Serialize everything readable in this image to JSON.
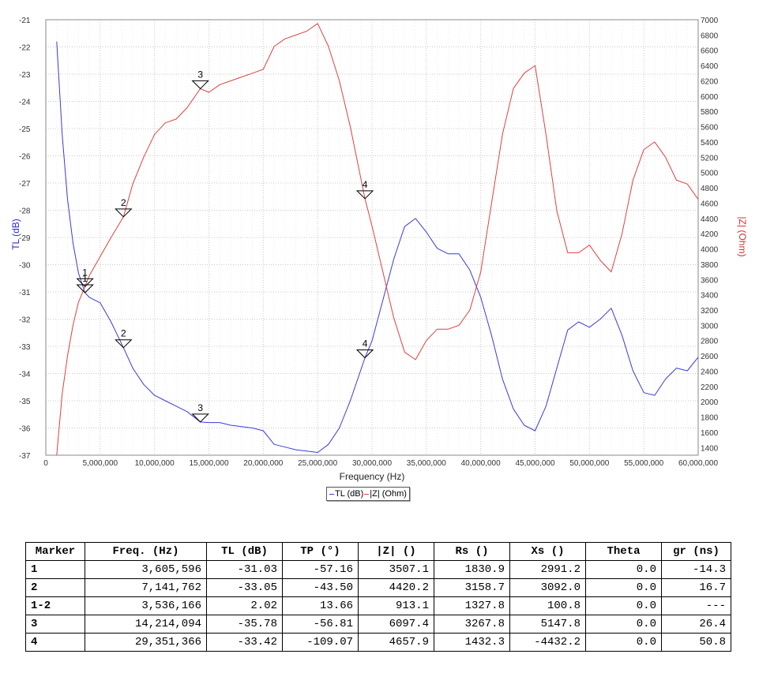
{
  "chart_data": {
    "type": "line",
    "xlabel": "Frequency (Hz)",
    "ylabel_left": "TL (dB)",
    "ylabel_right": "|Z| (Ohm)",
    "xlim": [
      0,
      60000000
    ],
    "ylim_left": [
      -37,
      -21
    ],
    "ylim_right": [
      1300,
      7000
    ],
    "x_ticks": [
      "0",
      "5,000,000",
      "10,000,000",
      "15,000,000",
      "20,000,000",
      "25,000,000",
      "30,000,000",
      "35,000,000",
      "40,000,000",
      "45,000,000",
      "50,000,000",
      "55,000,000",
      "60,000,000"
    ],
    "y_left_ticks": [
      "-21",
      "-22",
      "-23",
      "-24",
      "-25",
      "-26",
      "-27",
      "-28",
      "-29",
      "-30",
      "-31",
      "-32",
      "-33",
      "-34",
      "-35",
      "-36",
      "-37"
    ],
    "y_right_ticks": [
      "7000",
      "6800",
      "6600",
      "6400",
      "6200",
      "6000",
      "5800",
      "5600",
      "5400",
      "5200",
      "5000",
      "4800",
      "4600",
      "4400",
      "4200",
      "4000",
      "3800",
      "3600",
      "3400",
      "3200",
      "3000",
      "2800",
      "2600",
      "2400",
      "2200",
      "2000",
      "1800",
      "1600",
      "1400"
    ],
    "grid": true,
    "legend": {
      "position": "bottom-center",
      "entries": [
        "TL (dB)",
        "|Z| (Ohm)"
      ]
    },
    "colors": {
      "tl": "#3a3adc",
      "z": "#e04040",
      "grid": "#c8c8c8"
    },
    "series": [
      {
        "name": "TL (dB)",
        "axis": "left",
        "points": [
          [
            1000000,
            -21.8
          ],
          [
            1500000,
            -25.2
          ],
          [
            2000000,
            -27.6
          ],
          [
            2500000,
            -29.2
          ],
          [
            3000000,
            -30.3
          ],
          [
            3600000,
            -31.03
          ],
          [
            4000000,
            -31.2
          ],
          [
            5000000,
            -31.4
          ],
          [
            6000000,
            -32.1
          ],
          [
            7140000,
            -33.05
          ],
          [
            8000000,
            -33.8
          ],
          [
            9000000,
            -34.4
          ],
          [
            10000000,
            -34.8
          ],
          [
            11000000,
            -35.0
          ],
          [
            12000000,
            -35.2
          ],
          [
            13000000,
            -35.4
          ],
          [
            14210000,
            -35.78
          ],
          [
            15000000,
            -35.8
          ],
          [
            16000000,
            -35.8
          ],
          [
            17000000,
            -35.9
          ],
          [
            18000000,
            -35.95
          ],
          [
            19000000,
            -36.0
          ],
          [
            20000000,
            -36.1
          ],
          [
            21000000,
            -36.6
          ],
          [
            22000000,
            -36.7
          ],
          [
            23000000,
            -36.8
          ],
          [
            24000000,
            -36.85
          ],
          [
            25000000,
            -36.9
          ],
          [
            26000000,
            -36.6
          ],
          [
            27000000,
            -36.0
          ],
          [
            28000000,
            -35.0
          ],
          [
            29350000,
            -33.42
          ],
          [
            30000000,
            -32.8
          ],
          [
            31000000,
            -31.3
          ],
          [
            32000000,
            -29.8
          ],
          [
            33000000,
            -28.6
          ],
          [
            34000000,
            -28.3
          ],
          [
            35000000,
            -28.8
          ],
          [
            36000000,
            -29.4
          ],
          [
            37000000,
            -29.6
          ],
          [
            38000000,
            -29.6
          ],
          [
            39000000,
            -30.2
          ],
          [
            40000000,
            -31.2
          ],
          [
            41000000,
            -32.6
          ],
          [
            42000000,
            -34.2
          ],
          [
            43000000,
            -35.3
          ],
          [
            44000000,
            -35.9
          ],
          [
            45000000,
            -36.1
          ],
          [
            46000000,
            -35.2
          ],
          [
            47000000,
            -33.8
          ],
          [
            48000000,
            -32.4
          ],
          [
            49000000,
            -32.1
          ],
          [
            50000000,
            -32.3
          ],
          [
            51000000,
            -32.0
          ],
          [
            52000000,
            -31.6
          ],
          [
            53000000,
            -32.6
          ],
          [
            54000000,
            -33.9
          ],
          [
            55000000,
            -34.7
          ],
          [
            56000000,
            -34.8
          ],
          [
            57000000,
            -34.2
          ],
          [
            58000000,
            -33.8
          ],
          [
            59000000,
            -33.9
          ],
          [
            60000000,
            -33.4
          ]
        ]
      },
      {
        "name": "|Z| (Ohm)",
        "axis": "right",
        "points": [
          [
            1000000,
            1300
          ],
          [
            1500000,
            2100
          ],
          [
            2000000,
            2600
          ],
          [
            2500000,
            3000
          ],
          [
            3000000,
            3300
          ],
          [
            3600000,
            3507
          ],
          [
            4000000,
            3650
          ],
          [
            5000000,
            3900
          ],
          [
            6000000,
            4150
          ],
          [
            7140000,
            4420
          ],
          [
            8000000,
            4850
          ],
          [
            9000000,
            5200
          ],
          [
            10000000,
            5500
          ],
          [
            11000000,
            5650
          ],
          [
            12000000,
            5700
          ],
          [
            13000000,
            5850
          ],
          [
            14210000,
            6097
          ],
          [
            15000000,
            6050
          ],
          [
            16000000,
            6150
          ],
          [
            17000000,
            6200
          ],
          [
            18000000,
            6250
          ],
          [
            19000000,
            6300
          ],
          [
            20000000,
            6350
          ],
          [
            21000000,
            6650
          ],
          [
            22000000,
            6750
          ],
          [
            23000000,
            6800
          ],
          [
            24000000,
            6850
          ],
          [
            25000000,
            6950
          ],
          [
            26000000,
            6650
          ],
          [
            27000000,
            6200
          ],
          [
            28000000,
            5600
          ],
          [
            29350000,
            4658
          ],
          [
            30000000,
            4300
          ],
          [
            31000000,
            3700
          ],
          [
            32000000,
            3100
          ],
          [
            33000000,
            2650
          ],
          [
            34000000,
            2550
          ],
          [
            35000000,
            2800
          ],
          [
            36000000,
            2950
          ],
          [
            37000000,
            2950
          ],
          [
            38000000,
            3000
          ],
          [
            39000000,
            3200
          ],
          [
            40000000,
            3700
          ],
          [
            41000000,
            4600
          ],
          [
            42000000,
            5500
          ],
          [
            43000000,
            6100
          ],
          [
            44000000,
            6300
          ],
          [
            45000000,
            6400
          ],
          [
            46000000,
            5500
          ],
          [
            47000000,
            4500
          ],
          [
            48000000,
            3950
          ],
          [
            49000000,
            3950
          ],
          [
            50000000,
            4050
          ],
          [
            51000000,
            3850
          ],
          [
            52000000,
            3700
          ],
          [
            53000000,
            4200
          ],
          [
            54000000,
            4900
          ],
          [
            55000000,
            5300
          ],
          [
            56000000,
            5400
          ],
          [
            57000000,
            5200
          ],
          [
            58000000,
            4900
          ],
          [
            59000000,
            4850
          ],
          [
            60000000,
            4650
          ]
        ]
      }
    ],
    "markers": [
      {
        "label": "1",
        "freq": 3605596,
        "tl": -31.03,
        "z": 3507.1
      },
      {
        "label": "2",
        "freq": 7141762,
        "tl": -33.05,
        "z": 4420.2
      },
      {
        "label": "3",
        "freq": 14214094,
        "tl": -35.78,
        "z": 6097.4
      },
      {
        "label": "4",
        "freq": 29351366,
        "tl": -33.42,
        "z": 4657.9
      }
    ]
  },
  "table": {
    "headers": [
      "Marker",
      "Freq. (Hz)",
      "TL (dB)",
      "TP (°)",
      "|Z| ()",
      "Rs ()",
      "Xs ()",
      "Theta",
      "gr (ns)"
    ],
    "rows": [
      [
        "1",
        "3,605,596",
        "-31.03",
        "-57.16",
        "3507.1",
        "1830.9",
        "2991.2",
        "0.0",
        "-14.3"
      ],
      [
        "2",
        "7,141,762",
        "-33.05",
        "-43.50",
        "4420.2",
        "3158.7",
        "3092.0",
        "0.0",
        "16.7"
      ],
      [
        "1-2",
        "3,536,166",
        "2.02",
        "13.66",
        "913.1",
        "1327.8",
        "100.8",
        "0.0",
        "---"
      ],
      [
        "3",
        "14,214,094",
        "-35.78",
        "-56.81",
        "6097.4",
        "3267.8",
        "5147.8",
        "0.0",
        "26.4"
      ],
      [
        "4",
        "29,351,366",
        "-33.42",
        "-109.07",
        "4657.9",
        "1432.3",
        "-4432.2",
        "0.0",
        "50.8"
      ]
    ]
  }
}
